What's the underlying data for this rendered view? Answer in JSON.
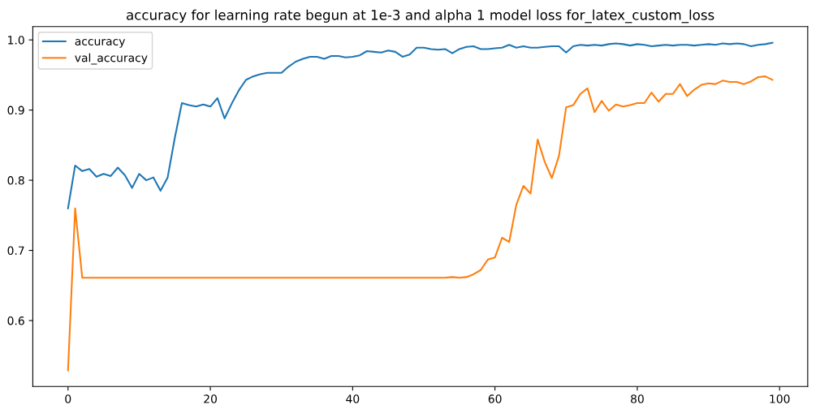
{
  "chart_data": {
    "type": "line",
    "title": "accuracy for learning rate begun at 1e-3 and alpha 1 model loss for_latex_custom_loss",
    "x": [
      0,
      1,
      2,
      3,
      4,
      5,
      6,
      7,
      8,
      9,
      10,
      11,
      12,
      13,
      14,
      15,
      16,
      17,
      18,
      19,
      20,
      21,
      22,
      23,
      24,
      25,
      26,
      27,
      28,
      29,
      30,
      31,
      32,
      33,
      34,
      35,
      36,
      37,
      38,
      39,
      40,
      41,
      42,
      43,
      44,
      45,
      46,
      47,
      48,
      49,
      50,
      51,
      52,
      53,
      54,
      55,
      56,
      57,
      58,
      59,
      60,
      61,
      62,
      63,
      64,
      65,
      66,
      67,
      68,
      69,
      70,
      71,
      72,
      73,
      74,
      75,
      76,
      77,
      78,
      79,
      80,
      81,
      82,
      83,
      84,
      85,
      86,
      87,
      88,
      89,
      90,
      91,
      92,
      93,
      94,
      95,
      96,
      97,
      98,
      99
    ],
    "series": [
      {
        "name": "accuracy",
        "color": "#1f77b4",
        "values": [
          0.76,
          0.821,
          0.813,
          0.816,
          0.805,
          0.809,
          0.806,
          0.818,
          0.807,
          0.789,
          0.809,
          0.8,
          0.804,
          0.785,
          0.804,
          0.86,
          0.91,
          0.907,
          0.905,
          0.908,
          0.905,
          0.917,
          0.888,
          0.909,
          0.928,
          0.943,
          0.948,
          0.951,
          0.953,
          0.953,
          0.953,
          0.962,
          0.969,
          0.973,
          0.976,
          0.976,
          0.973,
          0.977,
          0.977,
          0.975,
          0.976,
          0.978,
          0.984,
          0.983,
          0.982,
          0.985,
          0.983,
          0.976,
          0.979,
          0.989,
          0.989,
          0.987,
          0.986,
          0.987,
          0.981,
          0.987,
          0.99,
          0.991,
          0.987,
          0.987,
          0.988,
          0.989,
          0.993,
          0.989,
          0.991,
          0.989,
          0.989,
          0.99,
          0.991,
          0.991,
          0.982,
          0.991,
          0.993,
          0.992,
          0.993,
          0.992,
          0.994,
          0.995,
          0.994,
          0.992,
          0.994,
          0.993,
          0.991,
          0.992,
          0.993,
          0.992,
          0.993,
          0.993,
          0.992,
          0.993,
          0.994,
          0.993,
          0.995,
          0.994,
          0.995,
          0.994,
          0.991,
          0.993,
          0.994,
          0.996
        ]
      },
      {
        "name": "val_accuracy",
        "color": "#ff7f0e",
        "values": [
          0.529,
          0.76,
          0.661,
          0.661,
          0.661,
          0.661,
          0.661,
          0.661,
          0.661,
          0.661,
          0.661,
          0.661,
          0.661,
          0.661,
          0.661,
          0.661,
          0.661,
          0.661,
          0.661,
          0.661,
          0.661,
          0.661,
          0.661,
          0.661,
          0.661,
          0.661,
          0.661,
          0.661,
          0.661,
          0.661,
          0.661,
          0.661,
          0.661,
          0.661,
          0.661,
          0.661,
          0.661,
          0.661,
          0.661,
          0.661,
          0.661,
          0.661,
          0.661,
          0.661,
          0.661,
          0.661,
          0.661,
          0.661,
          0.661,
          0.661,
          0.661,
          0.661,
          0.661,
          0.661,
          0.662,
          0.661,
          0.662,
          0.666,
          0.672,
          0.687,
          0.69,
          0.718,
          0.712,
          0.765,
          0.792,
          0.781,
          0.858,
          0.826,
          0.803,
          0.835,
          0.904,
          0.907,
          0.923,
          0.931,
          0.897,
          0.913,
          0.899,
          0.908,
          0.905,
          0.907,
          0.91,
          0.91,
          0.925,
          0.912,
          0.923,
          0.923,
          0.937,
          0.92,
          0.929,
          0.936,
          0.938,
          0.937,
          0.942,
          0.94,
          0.94,
          0.937,
          0.941,
          0.947,
          0.948,
          0.943
        ]
      }
    ],
    "xlim": [
      -4.95,
      103.95
    ],
    "ylim": [
      0.506,
      1.019
    ],
    "xticks": [
      0,
      20,
      40,
      60,
      80,
      100
    ],
    "yticks": [
      {
        "value": 0.6,
        "label": "0.6"
      },
      {
        "value": 0.7,
        "label": "0.7"
      },
      {
        "value": 0.8,
        "label": "0.8"
      },
      {
        "value": 0.9,
        "label": "0.9"
      },
      {
        "value": 1.0,
        "label": "1.0"
      }
    ],
    "legend": "top left",
    "grid": false
  }
}
